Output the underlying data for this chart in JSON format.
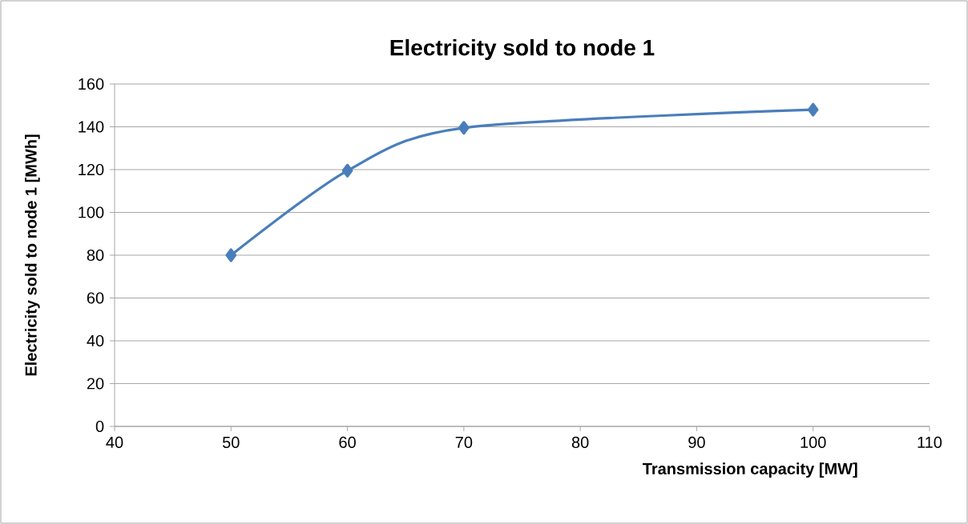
{
  "chart_data": {
    "type": "line",
    "title": "Electricity sold to node 1",
    "xlabel": "Transmission capacity [MW]",
    "ylabel": "Electricity sold to node 1 [MWh]",
    "x": [
      50,
      60,
      70,
      100
    ],
    "series": [
      {
        "color": "#4a7ebb",
        "values": [
          80,
          119.5,
          139.5,
          148
        ]
      }
    ],
    "xlim": [
      40,
      110
    ],
    "xticks": [
      40,
      50,
      60,
      70,
      80,
      90,
      100,
      110
    ],
    "ylim": [
      0,
      160
    ],
    "yticks": [
      0,
      20,
      40,
      60,
      80,
      100,
      120,
      140,
      160
    ],
    "grid": "y",
    "marker": "diamond",
    "line_style": "solid"
  }
}
